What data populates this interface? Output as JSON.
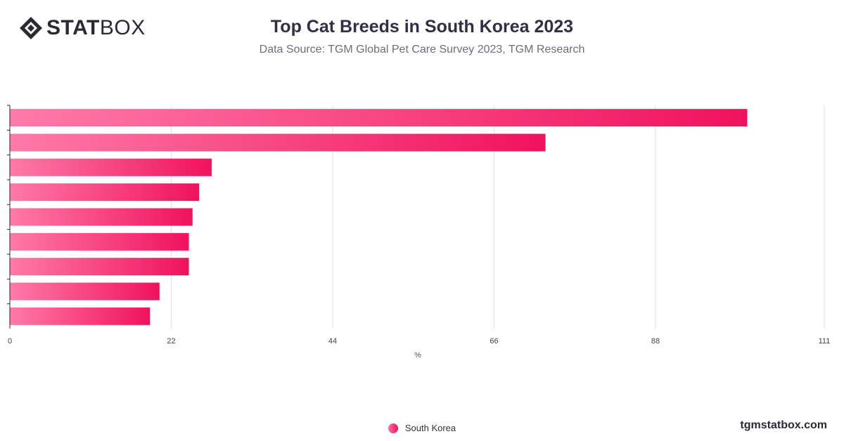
{
  "brand": {
    "logo_bold": "STAT",
    "logo_light": "BOX"
  },
  "header": {
    "title": "Top Cat Breeds in South Korea 2023",
    "subtitle": "Data Source: TGM Global Pet Care Survey 2023, TGM Research"
  },
  "chart_data": {
    "type": "bar",
    "orientation": "horizontal",
    "title": "Top Cat Breeds in South Korea 2023",
    "subtitle": "Data Source: TGM Global Pet Care Survey 2023, TGM Research",
    "xlabel": "%",
    "ylabel": "",
    "xlim": [
      0,
      111
    ],
    "xticks": [
      0,
      22,
      44,
      66,
      88,
      111
    ],
    "grid": true,
    "legend_position": "bottom",
    "categories": [
      "",
      "",
      "",
      "",
      "",
      "",
      "",
      "",
      ""
    ],
    "series": [
      {
        "name": "South Korea",
        "values": [
          100.5,
          73,
          27.5,
          25.8,
          24.9,
          24.4,
          24.4,
          20.4,
          19.1
        ]
      }
    ],
    "colors": {
      "bar_start": "#ff7aa8",
      "bar_end": "#f0125e",
      "grid": "#e1e1e1",
      "axis": "#2a2a2a"
    }
  },
  "legend": {
    "label": "South Korea"
  },
  "footer": {
    "site": "tgmstatbox.com"
  }
}
